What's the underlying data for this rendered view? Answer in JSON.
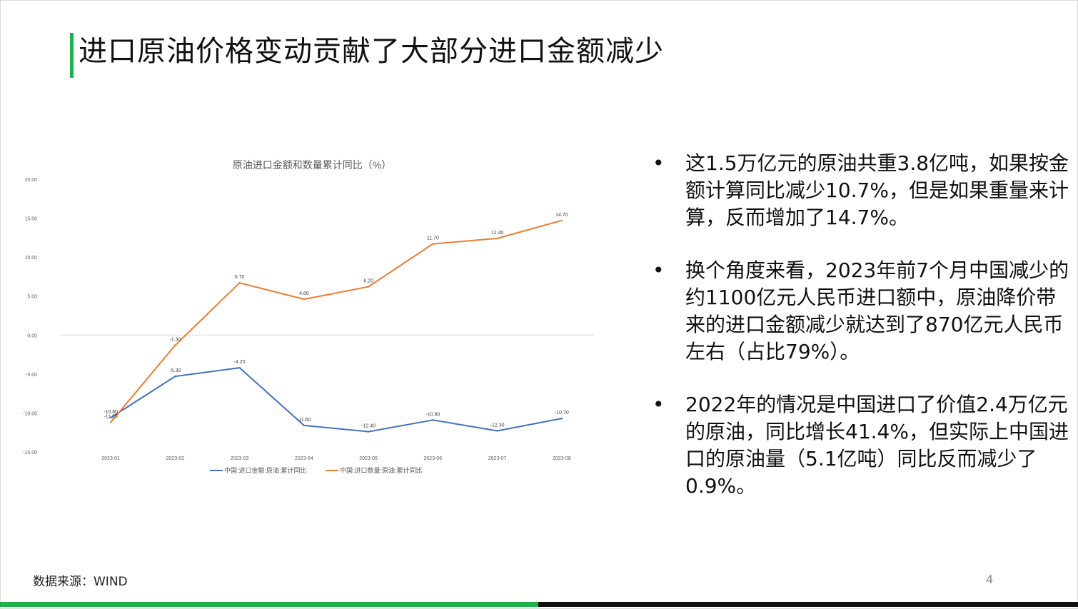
{
  "slide": {
    "title": "进口原油价格变动贡献了大部分进口金额减少",
    "source": "数据来源：WIND",
    "page_number": "4"
  },
  "bullets": [
    "这1.5万亿元的原油共重3.8亿吨，如果按金额计算同比减少10.7%，但是如果重量来计算，反而增加了14.7%。",
    "换个角度来看，2023年前7个月中国减少的约1100亿元人民币进口额中，原油降价带来的进口金额减少就达到了870亿元人民币左右（占比79%）。",
    "2022年的情况是中国进口了价值2.4万亿元的原油，同比增长41.4%，但实际上中国进口的原油量（5.1亿吨）同比反而减少了0.9%。"
  ],
  "colors": {
    "accent": "#1fb24a",
    "series_amount": "#4472c4",
    "series_quantity": "#ed7d31"
  },
  "chart_data": {
    "type": "line",
    "title": "原油进口金额和数量累计同比（%）",
    "x": [
      "2023-01",
      "2023-02",
      "2023-03",
      "2023-04",
      "2023-05",
      "2023-06",
      "2023-07",
      "2023-08"
    ],
    "y_ticks": [
      "20.00",
      "15.00",
      "10.00",
      "5.00",
      "0.00",
      "-5.00",
      "-10.00",
      "-15.00"
    ],
    "ylim": [
      -15,
      20
    ],
    "grid": "zero line only",
    "legend_position": "bottom",
    "series": [
      {
        "name": "中国:进口金额:原油:累计同比",
        "color": "#4472c4",
        "values": [
          -10.6,
          -5.3,
          -4.2,
          -11.6,
          -12.4,
          -10.9,
          -12.3,
          -10.7
        ],
        "labels": [
          "-10.60",
          "-5.30",
          "-4.20",
          "-11.60",
          "-12.40",
          "-10.90",
          "-12.30",
          "-10.70"
        ]
      },
      {
        "name": "中国:进口数量:原油:累计同比",
        "color": "#ed7d31",
        "values": [
          -11.2,
          -1.3,
          6.7,
          4.6,
          6.2,
          11.7,
          12.4,
          14.7
        ],
        "labels": [
          "-11.20",
          "-1.30",
          "6.70",
          "4.60",
          "6.20",
          "11.70",
          "12.40",
          "14.70"
        ]
      }
    ]
  }
}
